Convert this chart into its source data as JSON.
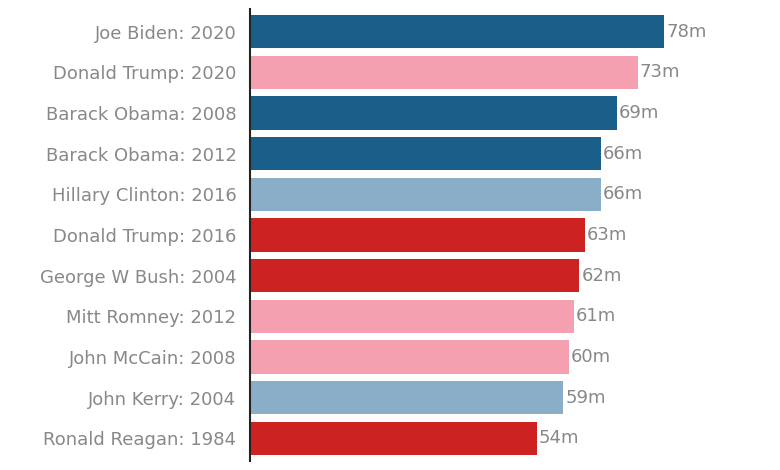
{
  "categories": [
    "Joe Biden: 2020",
    "Donald Trump: 2020",
    "Barack Obama: 2008",
    "Barack Obama: 2012",
    "Hillary Clinton: 2016",
    "Donald Trump: 2016",
    "George W Bush: 2004",
    "Mitt Romney: 2012",
    "John McCain: 2008",
    "John Kerry: 2004",
    "Ronald Reagan: 1984"
  ],
  "values": [
    78,
    73,
    69,
    66,
    66,
    63,
    62,
    61,
    60,
    59,
    54
  ],
  "labels": [
    "78m",
    "73m",
    "69m",
    "66m",
    "66m",
    "63m",
    "62m",
    "61m",
    "60m",
    "59m",
    "54m"
  ],
  "colors": [
    "#1a5f8a",
    "#f4a0b0",
    "#1a5f8a",
    "#1a5f8a",
    "#8aaec8",
    "#cc2222",
    "#cc2222",
    "#f4a0b0",
    "#f4a0b0",
    "#8aaec8",
    "#cc2222"
  ],
  "label_color": "#888888",
  "bar_label_color": "#888888",
  "background_color": "#ffffff",
  "xlim": [
    0,
    88
  ],
  "label_fontsize": 13,
  "value_fontsize": 13,
  "bar_height": 0.82,
  "left_spine_color": "#222222"
}
